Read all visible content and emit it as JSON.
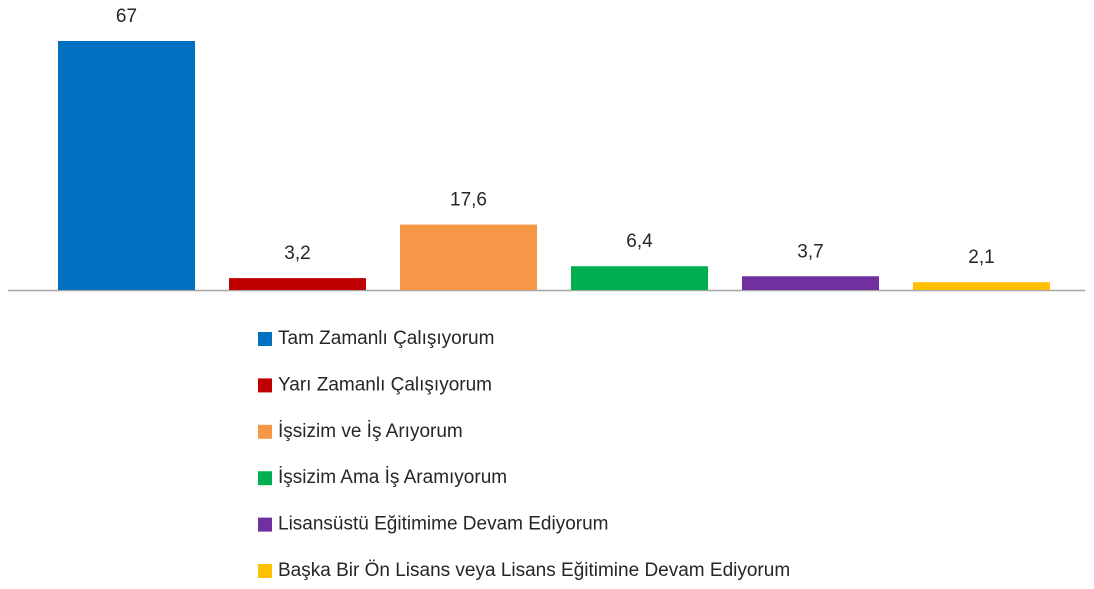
{
  "chart_data": {
    "type": "bar",
    "series": [
      {
        "name": "Tam Zamanlı Çalışıyorum",
        "color": "#0070c0",
        "values": [
          67
        ]
      },
      {
        "name": "Yarı Zamanlı Çalışıyorum",
        "color": "#c00000",
        "values": [
          3.2
        ],
        "value_labels": [
          "3,2"
        ]
      },
      {
        "name": "İşsizim ve İş Arıyorum",
        "color": "#f79646",
        "values": [
          17.6
        ],
        "value_labels": [
          "17,6"
        ]
      },
      {
        "name": "İşsizim Ama İş Aramıyorum",
        "color": "#00b050",
        "values": [
          6.4
        ],
        "value_labels": [
          "6,4"
        ]
      },
      {
        "name": "Lisansüstü Eğitimime Devam Ediyorum",
        "color": "#7030a0",
        "values": [
          3.7
        ],
        "value_labels": [
          "3,7"
        ]
      },
      {
        "name": "Başka Bir Ön Lisans veya Lisans Eğitimine Devam Ediyorum",
        "color": "#ffc000",
        "values": [
          2.1
        ],
        "value_labels": [
          "2,1"
        ]
      }
    ]
  }
}
